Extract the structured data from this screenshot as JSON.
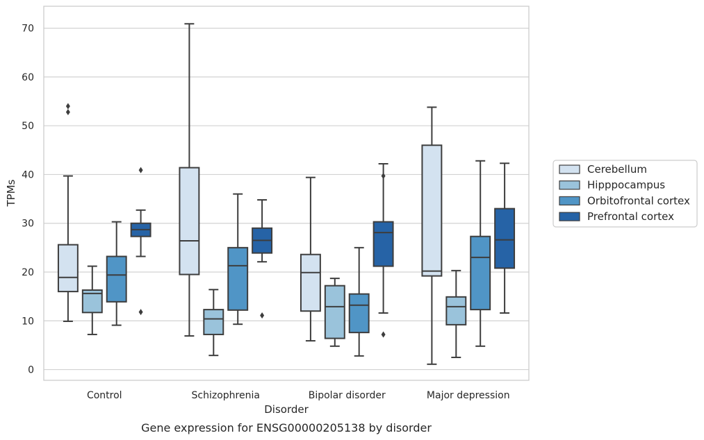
{
  "caption": "Gene expression for ENSG00000205138 by disorder",
  "chart_data": {
    "type": "box",
    "xlabel": "Disorder",
    "ylabel": "TPMs",
    "ylim": [
      -2.2,
      74.5
    ],
    "yticks": [
      0,
      10,
      20,
      30,
      40,
      50,
      60,
      70
    ],
    "grid": "horizontal",
    "legend_position": "right",
    "categories": [
      "Control",
      "Schizophrenia",
      "Bipolar disorder",
      "Major depression"
    ],
    "series": [
      {
        "name": "Cerebellum",
        "color": "#d3e2f0",
        "boxes": [
          {
            "whisker_low": 9.9,
            "q1": 16.0,
            "median": 18.9,
            "q3": 25.6,
            "whisker_high": 39.7,
            "outliers": [
              52.8,
              54.0
            ]
          },
          {
            "whisker_low": 6.9,
            "q1": 19.5,
            "median": 26.4,
            "q3": 41.4,
            "whisker_high": 70.9,
            "outliers": []
          },
          {
            "whisker_low": 5.9,
            "q1": 12.0,
            "median": 19.9,
            "q3": 23.6,
            "whisker_high": 39.4,
            "outliers": []
          },
          {
            "whisker_low": 1.1,
            "q1": 19.2,
            "median": 20.2,
            "q3": 46.0,
            "whisker_high": 53.8,
            "outliers": []
          }
        ]
      },
      {
        "name": "Hipppocampus",
        "color": "#9ac3db",
        "boxes": [
          {
            "whisker_low": 7.2,
            "q1": 11.7,
            "median": 15.6,
            "q3": 16.3,
            "whisker_high": 21.2,
            "outliers": []
          },
          {
            "whisker_low": 2.9,
            "q1": 7.2,
            "median": 10.4,
            "q3": 12.3,
            "whisker_high": 16.4,
            "outliers": []
          },
          {
            "whisker_low": 4.8,
            "q1": 6.4,
            "median": 12.9,
            "q3": 17.2,
            "whisker_high": 18.7,
            "outliers": []
          },
          {
            "whisker_low": 2.5,
            "q1": 9.2,
            "median": 12.9,
            "q3": 14.9,
            "whisker_high": 20.3,
            "outliers": []
          }
        ]
      },
      {
        "name": "Orbitofrontal cortex",
        "color": "#5095c6",
        "boxes": [
          {
            "whisker_low": 9.1,
            "q1": 13.9,
            "median": 19.4,
            "q3": 23.2,
            "whisker_high": 30.3,
            "outliers": []
          },
          {
            "whisker_low": 9.3,
            "q1": 12.2,
            "median": 21.3,
            "q3": 25.0,
            "whisker_high": 36.0,
            "outliers": []
          },
          {
            "whisker_low": 2.8,
            "q1": 7.6,
            "median": 13.2,
            "q3": 15.5,
            "whisker_high": 25.0,
            "outliers": []
          },
          {
            "whisker_low": 4.8,
            "q1": 12.3,
            "median": 23.0,
            "q3": 27.3,
            "whisker_high": 42.8,
            "outliers": []
          }
        ]
      },
      {
        "name": "Prefrontal cortex",
        "color": "#2663a6",
        "boxes": [
          {
            "whisker_low": 23.2,
            "q1": 27.3,
            "median": 28.7,
            "q3": 30.0,
            "whisker_high": 32.7,
            "outliers": [
              11.8,
              40.9
            ]
          },
          {
            "whisker_low": 22.1,
            "q1": 23.9,
            "median": 26.5,
            "q3": 29.0,
            "whisker_high": 34.8,
            "outliers": [
              11.1
            ]
          },
          {
            "whisker_low": 11.6,
            "q1": 21.2,
            "median": 28.1,
            "q3": 30.3,
            "whisker_high": 42.2,
            "outliers": [
              7.2,
              39.7
            ]
          },
          {
            "whisker_low": 11.6,
            "q1": 20.8,
            "median": 26.6,
            "q3": 33.0,
            "whisker_high": 42.3,
            "outliers": []
          }
        ]
      }
    ]
  }
}
